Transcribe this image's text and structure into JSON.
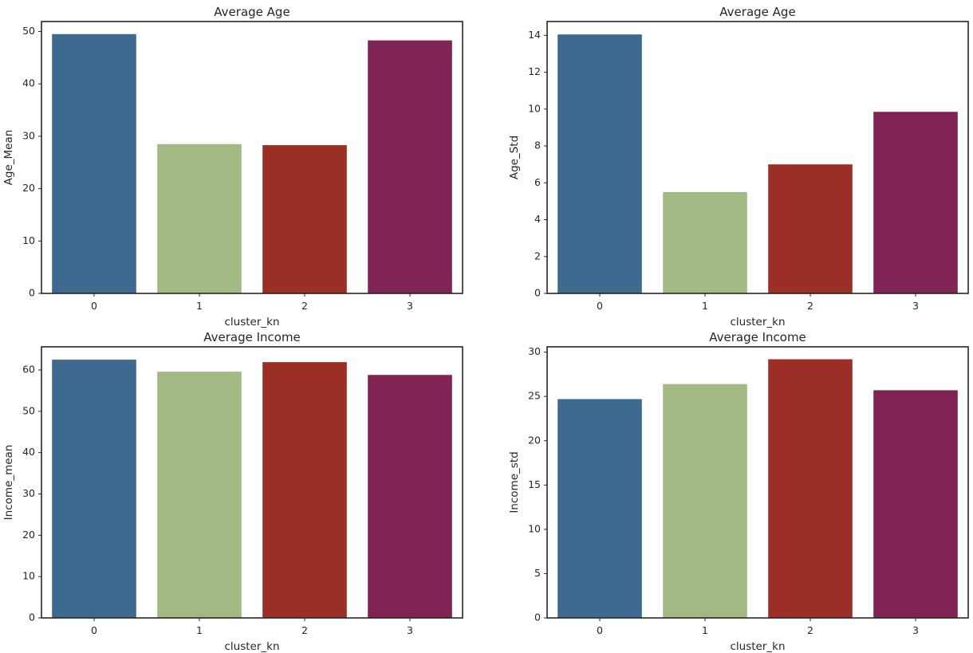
{
  "chart_data": [
    {
      "type": "bar",
      "title": "Average Age",
      "xlabel": "cluster_kn",
      "ylabel": "Age_Mean",
      "categories": [
        "0",
        "1",
        "2",
        "3"
      ],
      "values": [
        49.5,
        28.5,
        28.3,
        48.3
      ],
      "colors": [
        "#3d6a8e",
        "#a3b983",
        "#9b2f26",
        "#7f2454"
      ],
      "ylim": [
        0,
        51.9
      ],
      "yticks": [
        0,
        10,
        20,
        30,
        40,
        50
      ],
      "grid": false
    },
    {
      "type": "bar",
      "title": "Average Age",
      "xlabel": "cluster_kn",
      "ylabel": "Age_Std",
      "categories": [
        "0",
        "1",
        "2",
        "3"
      ],
      "values": [
        14.05,
        5.5,
        7.0,
        9.85
      ],
      "colors": [
        "#3d6a8e",
        "#a3b983",
        "#9b2f26",
        "#7f2454"
      ],
      "ylim": [
        0,
        14.75
      ],
      "yticks": [
        0,
        2,
        4,
        6,
        8,
        10,
        12,
        14
      ],
      "grid": false
    },
    {
      "type": "bar",
      "title": "Average Income",
      "xlabel": "cluster_kn",
      "ylabel": "Income_mean",
      "categories": [
        "0",
        "1",
        "2",
        "3"
      ],
      "values": [
        62.5,
        59.6,
        61.9,
        58.8
      ],
      "colors": [
        "#3d6a8e",
        "#a3b983",
        "#9b2f26",
        "#7f2454"
      ],
      "ylim": [
        0,
        65.6
      ],
      "yticks": [
        0,
        10,
        20,
        30,
        40,
        50,
        60
      ],
      "grid": false
    },
    {
      "type": "bar",
      "title": "Average Income",
      "xlabel": "cluster_kn",
      "ylabel": "Income_std",
      "categories": [
        "0",
        "1",
        "2",
        "3"
      ],
      "values": [
        24.7,
        26.4,
        29.2,
        25.7
      ],
      "colors": [
        "#3d6a8e",
        "#a3b983",
        "#9b2f26",
        "#7f2454"
      ],
      "ylim": [
        0,
        30.6
      ],
      "yticks": [
        0,
        5,
        10,
        15,
        20,
        25,
        30
      ],
      "grid": false
    }
  ]
}
